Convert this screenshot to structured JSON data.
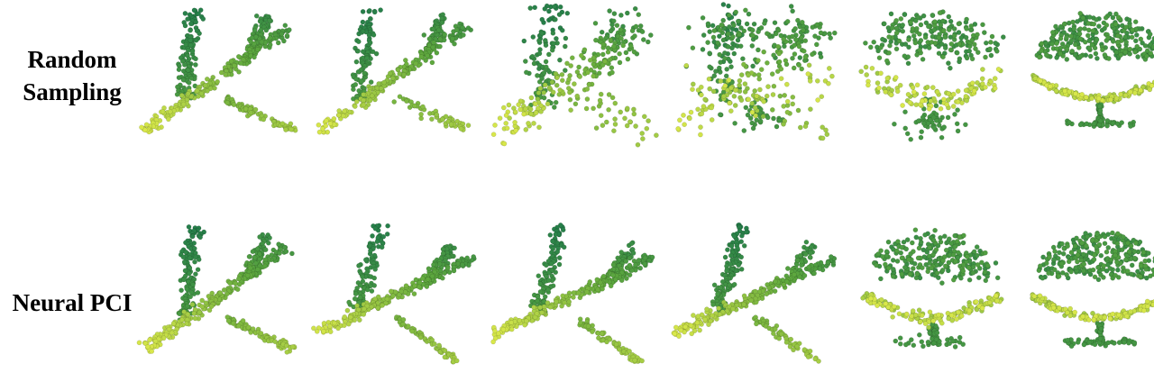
{
  "rows": [
    {
      "label_line1": "Random",
      "label_line2": "Sampling"
    },
    {
      "label_line1": "Neural PCI",
      "label_line2": ""
    }
  ],
  "colors": {
    "dark": "#1f7a4c",
    "mid": "#5ea83e",
    "light": "#d9e84a"
  },
  "grid": [
    [
      "airplane",
      "airplane-sparse",
      "airplane-scattered",
      "mixed-scattered",
      "chair-scattered",
      "chair"
    ],
    [
      "airplane",
      "airplane-rotated",
      "airplane-rotated",
      "airplane-rotated",
      "chair-forming",
      "chair"
    ]
  ]
}
